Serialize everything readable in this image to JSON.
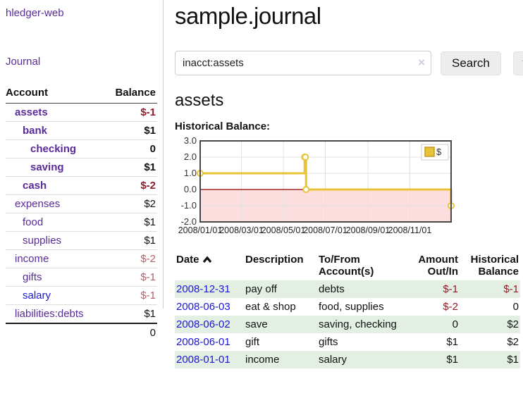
{
  "app": {
    "brand": "hledger-web"
  },
  "sidebar": {
    "journal_link": "Journal",
    "accounts": {
      "header_account": "Account",
      "header_balance": "Balance",
      "rows": [
        {
          "account": "assets",
          "balance": "$-1",
          "indent": 0,
          "matched": true,
          "negative": true,
          "blue": false
        },
        {
          "account": "bank",
          "balance": "$1",
          "indent": 1,
          "matched": true,
          "negative": false,
          "blue": false
        },
        {
          "account": "checking",
          "balance": "0",
          "indent": 2,
          "matched": true,
          "negative": false,
          "blue": false
        },
        {
          "account": "saving",
          "balance": "$1",
          "indent": 2,
          "matched": true,
          "negative": false,
          "blue": false
        },
        {
          "account": "cash",
          "balance": "$-2",
          "indent": 1,
          "matched": true,
          "negative": true,
          "blue": false
        },
        {
          "account": "expenses",
          "balance": "$2",
          "indent": 0,
          "matched": false,
          "negative": false,
          "blue": false
        },
        {
          "account": "food",
          "balance": "$1",
          "indent": 1,
          "matched": false,
          "negative": false,
          "blue": false
        },
        {
          "account": "supplies",
          "balance": "$1",
          "indent": 1,
          "matched": false,
          "negative": false,
          "blue": false
        },
        {
          "account": "income",
          "balance": "$-2",
          "indent": 0,
          "matched": false,
          "negative": true,
          "blue": false
        },
        {
          "account": "gifts",
          "balance": "$-1",
          "indent": 1,
          "matched": false,
          "negative": true,
          "blue": false
        },
        {
          "account": "salary",
          "balance": "$-1",
          "indent": 1,
          "matched": false,
          "negative": true,
          "blue": true
        },
        {
          "account": "liabilities:debts",
          "balance": "$1",
          "indent": 0,
          "matched": false,
          "negative": false,
          "blue": false
        }
      ],
      "total": "0"
    }
  },
  "main": {
    "title": "sample.journal",
    "search": {
      "value": "inacct:assets",
      "clear_icon": "×",
      "search_button": "Search",
      "help_button": "?"
    },
    "account_heading": "assets",
    "chart_label": "Historical Balance:",
    "register": {
      "headers": {
        "date": "Date",
        "description": "Description",
        "accounts": "To/From Account(s)",
        "amount": "Amount Out/In",
        "balance": "Historical Balance"
      },
      "rows": [
        {
          "date": "2008-12-31",
          "description": "pay off",
          "accounts": "debts",
          "amount": "$-1",
          "balance": "$-1",
          "amount_negative": true,
          "balance_negative": true,
          "shaded": true
        },
        {
          "date": "2008-06-03",
          "description": "eat & shop",
          "accounts": "food, supplies",
          "amount": "$-2",
          "balance": "0",
          "amount_negative": true,
          "balance_negative": false,
          "shaded": false
        },
        {
          "date": "2008-06-02",
          "description": "save",
          "accounts": "saving, checking",
          "amount": "0",
          "balance": "$2",
          "amount_negative": false,
          "balance_negative": false,
          "shaded": true
        },
        {
          "date": "2008-06-01",
          "description": "gift",
          "accounts": "gifts",
          "amount": "$1",
          "balance": "$2",
          "amount_negative": false,
          "balance_negative": false,
          "shaded": false
        },
        {
          "date": "2008-01-01",
          "description": "income",
          "accounts": "salary",
          "amount": "$1",
          "balance": "$1",
          "amount_negative": false,
          "balance_negative": false,
          "shaded": true
        }
      ]
    }
  },
  "chart_data": {
    "type": "line",
    "title": "Historical Balance",
    "step": true,
    "legend": [
      {
        "label": "$",
        "color": "#e9c337"
      }
    ],
    "legend_position": "top-right",
    "x_start": "2008/01/01",
    "x_end": "2008/12/31",
    "x_tick_labels": [
      "2008/01/01",
      "2008/03/01",
      "2008/05/01",
      "2008/07/01",
      "2008/09/01",
      "2008/11/01"
    ],
    "y_ticks": [
      "3.0",
      "2.0",
      "1.0",
      "0.0",
      "-1.0",
      "-2.0"
    ],
    "ylim": [
      -2,
      3
    ],
    "grid": true,
    "points": [
      {
        "date": "2008/01/01",
        "value": 1
      },
      {
        "date": "2008/06/01",
        "value": 2
      },
      {
        "date": "2008/06/02",
        "value": 2
      },
      {
        "date": "2008/06/03",
        "value": 0
      },
      {
        "date": "2008/12/31",
        "value": -1
      }
    ],
    "colors": {
      "line": "#e9c337",
      "marker_fill": "#ffffff",
      "negative_region": "#fcdede",
      "zero_line": "#8b0000",
      "gridline": "#e2e2e2",
      "border": "#474747",
      "tick_text": "#333333"
    }
  }
}
